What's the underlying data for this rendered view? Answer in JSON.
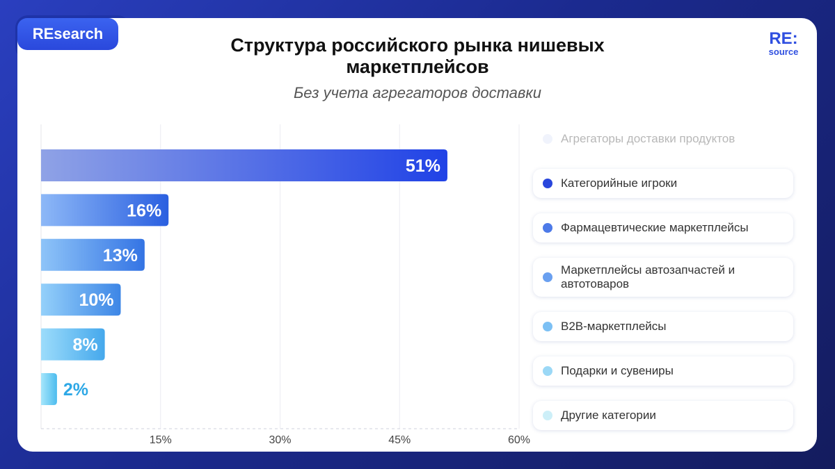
{
  "badge": "REsearch",
  "logo": {
    "top": "RE:",
    "bottom": "source"
  },
  "title": "Структура российского рынка нишевых маркетплейсов",
  "subtitle": "Без учета агрегаторов доставки",
  "colors": {
    "background": "#1f2f9e",
    "accent": "#2f4fe0",
    "series": [
      "#d7def8",
      "#2946dc",
      "#4d7ae8",
      "#6aa0f0",
      "#7cc0f4",
      "#9bd8f6",
      "#cdeff8"
    ]
  },
  "legend": [
    "Агрегаторы доставки продуктов",
    "Категорийные игроки",
    "Фармацевтические маркетплейсы",
    "Маркетплейсы автозапчастей и автотоваров",
    "B2B-маркетплейсы",
    "Подарки и сувениры",
    "Другие категории"
  ],
  "chart_data": {
    "type": "bar",
    "orientation": "horizontal",
    "categories": [
      "Категорийные игроки",
      "Фармацевтические маркетплейсы",
      "Маркетплейсы автозапчастей и автотоваров",
      "B2B-маркетплейсы",
      "Подарки и сувениры",
      "Другие категории"
    ],
    "values": [
      51,
      16,
      13,
      10,
      8,
      2
    ],
    "data_labels": [
      "51%",
      "16%",
      "13%",
      "10%",
      "8%",
      "2%"
    ],
    "xlim": [
      0,
      60
    ],
    "xticks": [
      15,
      30,
      45,
      60
    ],
    "xtick_labels": [
      "15%",
      "30%",
      "45%",
      "60%"
    ],
    "grid": true,
    "legend_position": "right"
  }
}
